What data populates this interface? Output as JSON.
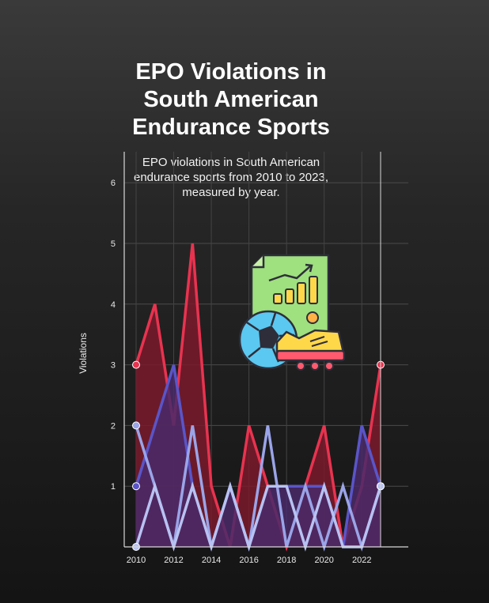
{
  "chart_data": {
    "type": "area",
    "title": "EPO Violations in\nSouth American\nEndurance Sports",
    "subtitle": "EPO violations in South American endurance sports from 2010 to 2023, measured by year.",
    "xlabel": "",
    "ylabel": "Violations",
    "x": [
      2010,
      2011,
      2012,
      2013,
      2014,
      2015,
      2016,
      2017,
      2018,
      2019,
      2020,
      2021,
      2022,
      2023
    ],
    "x_ticks": [
      "2010",
      "2012",
      "2014",
      "2016",
      "2018",
      "2020",
      "2022"
    ],
    "y_ticks": [
      "1",
      "2",
      "3",
      "4",
      "5",
      "6"
    ],
    "ylim": [
      0,
      6.5
    ],
    "grid": true,
    "series": [
      {
        "values": [
          3,
          4,
          2,
          5,
          1,
          0,
          2,
          1,
          0,
          1,
          2,
          0,
          1,
          3
        ],
        "color": "#e8334f",
        "fill": "#7a1a2c"
      },
      {
        "values": [
          1,
          2,
          3,
          1,
          0,
          1,
          0,
          1,
          1,
          1,
          1,
          0,
          2,
          1
        ],
        "color": "#5a55c8",
        "fill": "#4a2a6a"
      },
      {
        "values": [
          2,
          1,
          0,
          2,
          0,
          1,
          0,
          2,
          0,
          1,
          0,
          1,
          0,
          1
        ],
        "color": "#9aa4e8",
        "fill": "none"
      },
      {
        "values": [
          0,
          1,
          0,
          1,
          0,
          1,
          0,
          1,
          1,
          0,
          1,
          0,
          0,
          1
        ],
        "color": "#b8c2f2",
        "fill": "none"
      }
    ],
    "icon": "soccer-stats-report-icon"
  }
}
